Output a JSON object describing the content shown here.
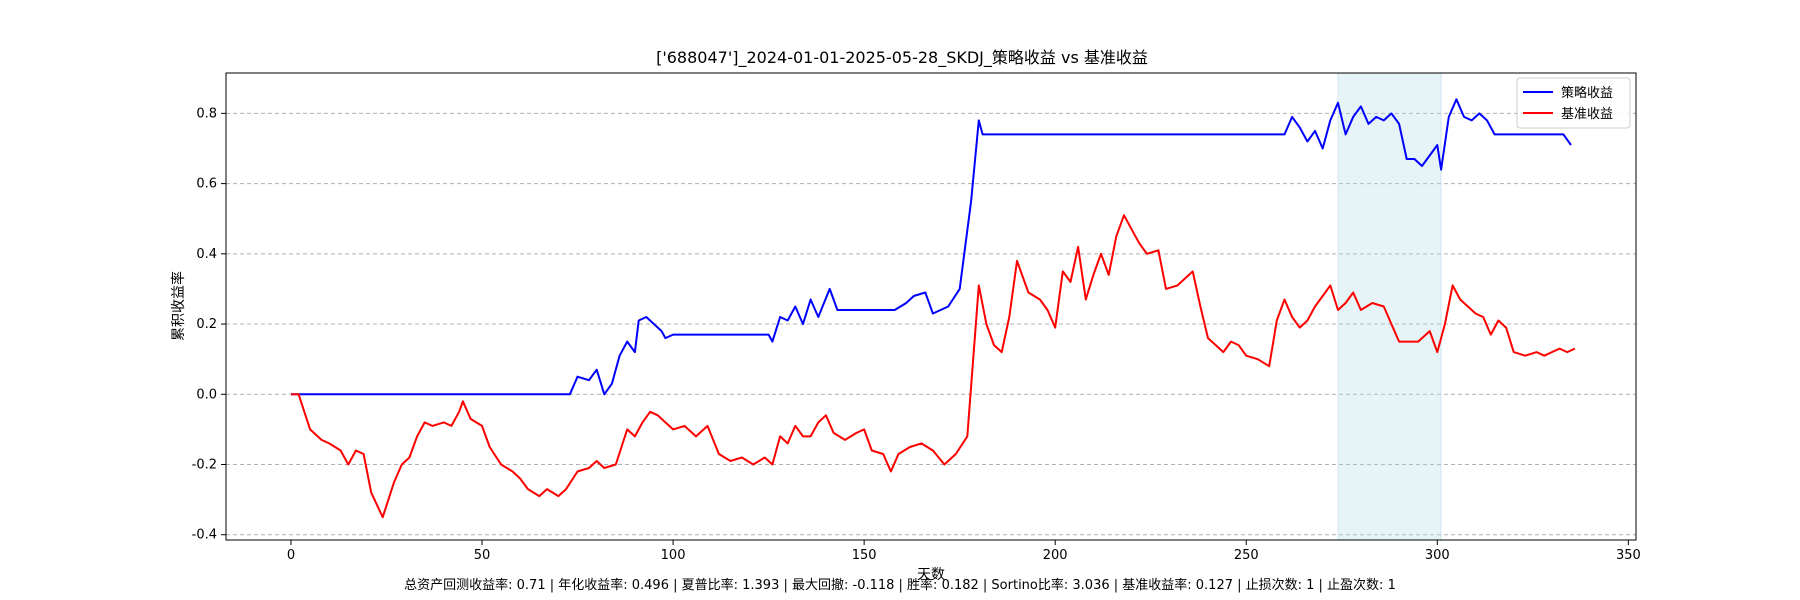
{
  "chart_data": {
    "type": "line",
    "title": "['688047']_2024-01-01-2025-05-28_SKDJ_策略收益 vs 基准收益",
    "xlabel": "天数",
    "ylabel": "累积收益率",
    "xlim": [
      -17,
      352
    ],
    "ylim": [
      -0.415,
      0.915
    ],
    "xticks": [
      0,
      50,
      100,
      150,
      200,
      250,
      300,
      350
    ],
    "yticks": [
      -0.4,
      -0.2,
      0.0,
      0.2,
      0.4,
      0.6,
      0.8
    ],
    "ytick_labels": [
      "-0.4",
      "-0.2",
      "0.0",
      "0.2",
      "0.4",
      "0.6",
      "0.8"
    ],
    "grid": "horizontal dashed",
    "legend_position": "top-right",
    "shaded_region": {
      "x_start": 274,
      "x_end": 301,
      "color": "#add8e6"
    },
    "series": [
      {
        "name": "策略收益",
        "color": "#0000ff",
        "points": [
          [
            0,
            0
          ],
          [
            73,
            0
          ],
          [
            75,
            0.05
          ],
          [
            78,
            0.04
          ],
          [
            80,
            0.07
          ],
          [
            82,
            0.0
          ],
          [
            84,
            0.03
          ],
          [
            86,
            0.11
          ],
          [
            88,
            0.15
          ],
          [
            90,
            0.12
          ],
          [
            91,
            0.21
          ],
          [
            93,
            0.22
          ],
          [
            95,
            0.2
          ],
          [
            97,
            0.18
          ],
          [
            98,
            0.16
          ],
          [
            100,
            0.17
          ],
          [
            125,
            0.17
          ],
          [
            126,
            0.15
          ],
          [
            128,
            0.22
          ],
          [
            130,
            0.21
          ],
          [
            132,
            0.25
          ],
          [
            134,
            0.2
          ],
          [
            136,
            0.27
          ],
          [
            138,
            0.22
          ],
          [
            141,
            0.3
          ],
          [
            143,
            0.24
          ],
          [
            145,
            0.24
          ],
          [
            158,
            0.24
          ],
          [
            161,
            0.26
          ],
          [
            163,
            0.28
          ],
          [
            166,
            0.29
          ],
          [
            168,
            0.23
          ],
          [
            170,
            0.24
          ],
          [
            172,
            0.25
          ],
          [
            175,
            0.3
          ],
          [
            178,
            0.55
          ],
          [
            180,
            0.78
          ],
          [
            181,
            0.74
          ],
          [
            260,
            0.74
          ],
          [
            262,
            0.79
          ],
          [
            264,
            0.76
          ],
          [
            266,
            0.72
          ],
          [
            268,
            0.75
          ],
          [
            270,
            0.7
          ],
          [
            272,
            0.78
          ],
          [
            274,
            0.83
          ],
          [
            276,
            0.74
          ],
          [
            278,
            0.79
          ],
          [
            280,
            0.82
          ],
          [
            282,
            0.77
          ],
          [
            284,
            0.79
          ],
          [
            286,
            0.78
          ],
          [
            288,
            0.8
          ],
          [
            290,
            0.77
          ],
          [
            292,
            0.67
          ],
          [
            294,
            0.67
          ],
          [
            296,
            0.65
          ],
          [
            298,
            0.68
          ],
          [
            300,
            0.71
          ],
          [
            301,
            0.64
          ],
          [
            303,
            0.79
          ],
          [
            305,
            0.84
          ],
          [
            307,
            0.79
          ],
          [
            309,
            0.78
          ],
          [
            311,
            0.8
          ],
          [
            313,
            0.78
          ],
          [
            315,
            0.74
          ],
          [
            333,
            0.74
          ],
          [
            335,
            0.71
          ]
        ]
      },
      {
        "name": "基准收益",
        "color": "#ff0000",
        "points": [
          [
            0,
            0
          ],
          [
            2,
            0
          ],
          [
            5,
            -0.1
          ],
          [
            8,
            -0.13
          ],
          [
            10,
            -0.14
          ],
          [
            13,
            -0.16
          ],
          [
            15,
            -0.2
          ],
          [
            17,
            -0.16
          ],
          [
            19,
            -0.17
          ],
          [
            21,
            -0.28
          ],
          [
            24,
            -0.35
          ],
          [
            27,
            -0.25
          ],
          [
            29,
            -0.2
          ],
          [
            31,
            -0.18
          ],
          [
            33,
            -0.12
          ],
          [
            35,
            -0.08
          ],
          [
            37,
            -0.09
          ],
          [
            40,
            -0.08
          ],
          [
            42,
            -0.09
          ],
          [
            44,
            -0.05
          ],
          [
            45,
            -0.02
          ],
          [
            47,
            -0.07
          ],
          [
            50,
            -0.09
          ],
          [
            52,
            -0.15
          ],
          [
            55,
            -0.2
          ],
          [
            58,
            -0.22
          ],
          [
            60,
            -0.24
          ],
          [
            62,
            -0.27
          ],
          [
            65,
            -0.29
          ],
          [
            67,
            -0.27
          ],
          [
            70,
            -0.29
          ],
          [
            72,
            -0.27
          ],
          [
            75,
            -0.22
          ],
          [
            78,
            -0.21
          ],
          [
            80,
            -0.19
          ],
          [
            82,
            -0.21
          ],
          [
            85,
            -0.2
          ],
          [
            88,
            -0.1
          ],
          [
            90,
            -0.12
          ],
          [
            92,
            -0.08
          ],
          [
            94,
            -0.05
          ],
          [
            96,
            -0.06
          ],
          [
            98,
            -0.08
          ],
          [
            100,
            -0.1
          ],
          [
            103,
            -0.09
          ],
          [
            106,
            -0.12
          ],
          [
            109,
            -0.09
          ],
          [
            112,
            -0.17
          ],
          [
            115,
            -0.19
          ],
          [
            118,
            -0.18
          ],
          [
            121,
            -0.2
          ],
          [
            124,
            -0.18
          ],
          [
            126,
            -0.2
          ],
          [
            128,
            -0.12
          ],
          [
            130,
            -0.14
          ],
          [
            132,
            -0.09
          ],
          [
            134,
            -0.12
          ],
          [
            136,
            -0.12
          ],
          [
            138,
            -0.08
          ],
          [
            140,
            -0.06
          ],
          [
            142,
            -0.11
          ],
          [
            145,
            -0.13
          ],
          [
            148,
            -0.11
          ],
          [
            150,
            -0.1
          ],
          [
            152,
            -0.16
          ],
          [
            155,
            -0.17
          ],
          [
            157,
            -0.22
          ],
          [
            159,
            -0.17
          ],
          [
            162,
            -0.15
          ],
          [
            165,
            -0.14
          ],
          [
            168,
            -0.16
          ],
          [
            171,
            -0.2
          ],
          [
            174,
            -0.17
          ],
          [
            177,
            -0.12
          ],
          [
            180,
            0.31
          ],
          [
            182,
            0.2
          ],
          [
            184,
            0.14
          ],
          [
            186,
            0.12
          ],
          [
            188,
            0.22
          ],
          [
            190,
            0.38
          ],
          [
            193,
            0.29
          ],
          [
            196,
            0.27
          ],
          [
            198,
            0.24
          ],
          [
            200,
            0.19
          ],
          [
            202,
            0.35
          ],
          [
            204,
            0.32
          ],
          [
            206,
            0.42
          ],
          [
            208,
            0.27
          ],
          [
            210,
            0.34
          ],
          [
            212,
            0.4
          ],
          [
            214,
            0.34
          ],
          [
            216,
            0.45
          ],
          [
            218,
            0.51
          ],
          [
            220,
            0.47
          ],
          [
            222,
            0.43
          ],
          [
            224,
            0.4
          ],
          [
            227,
            0.41
          ],
          [
            229,
            0.3
          ],
          [
            232,
            0.31
          ],
          [
            234,
            0.33
          ],
          [
            236,
            0.35
          ],
          [
            238,
            0.25
          ],
          [
            240,
            0.16
          ],
          [
            242,
            0.14
          ],
          [
            244,
            0.12
          ],
          [
            246,
            0.15
          ],
          [
            248,
            0.14
          ],
          [
            250,
            0.11
          ],
          [
            253,
            0.1
          ],
          [
            256,
            0.08
          ],
          [
            258,
            0.21
          ],
          [
            260,
            0.27
          ],
          [
            262,
            0.22
          ],
          [
            264,
            0.19
          ],
          [
            266,
            0.21
          ],
          [
            268,
            0.25
          ],
          [
            270,
            0.28
          ],
          [
            272,
            0.31
          ],
          [
            274,
            0.24
          ],
          [
            276,
            0.26
          ],
          [
            278,
            0.29
          ],
          [
            280,
            0.24
          ],
          [
            283,
            0.26
          ],
          [
            286,
            0.25
          ],
          [
            288,
            0.2
          ],
          [
            290,
            0.15
          ],
          [
            292,
            0.15
          ],
          [
            295,
            0.15
          ],
          [
            298,
            0.18
          ],
          [
            300,
            0.12
          ],
          [
            302,
            0.2
          ],
          [
            304,
            0.31
          ],
          [
            306,
            0.27
          ],
          [
            308,
            0.25
          ],
          [
            310,
            0.23
          ],
          [
            312,
            0.22
          ],
          [
            314,
            0.17
          ],
          [
            316,
            0.21
          ],
          [
            318,
            0.19
          ],
          [
            320,
            0.12
          ],
          [
            323,
            0.11
          ],
          [
            326,
            0.12
          ],
          [
            328,
            0.11
          ],
          [
            330,
            0.12
          ],
          [
            332,
            0.13
          ],
          [
            334,
            0.12
          ],
          [
            336,
            0.13
          ]
        ]
      }
    ]
  },
  "footer_text": "总资产回测收益率: 0.71 | 年化收益率: 0.496 | 夏普比率: 1.393 | 最大回撤: -0.118 | 胜率: 0.182 | Sortino比率: 3.036 | 基准收益率: 0.127 | 止损次数: 1 | 止盈次数: 1"
}
